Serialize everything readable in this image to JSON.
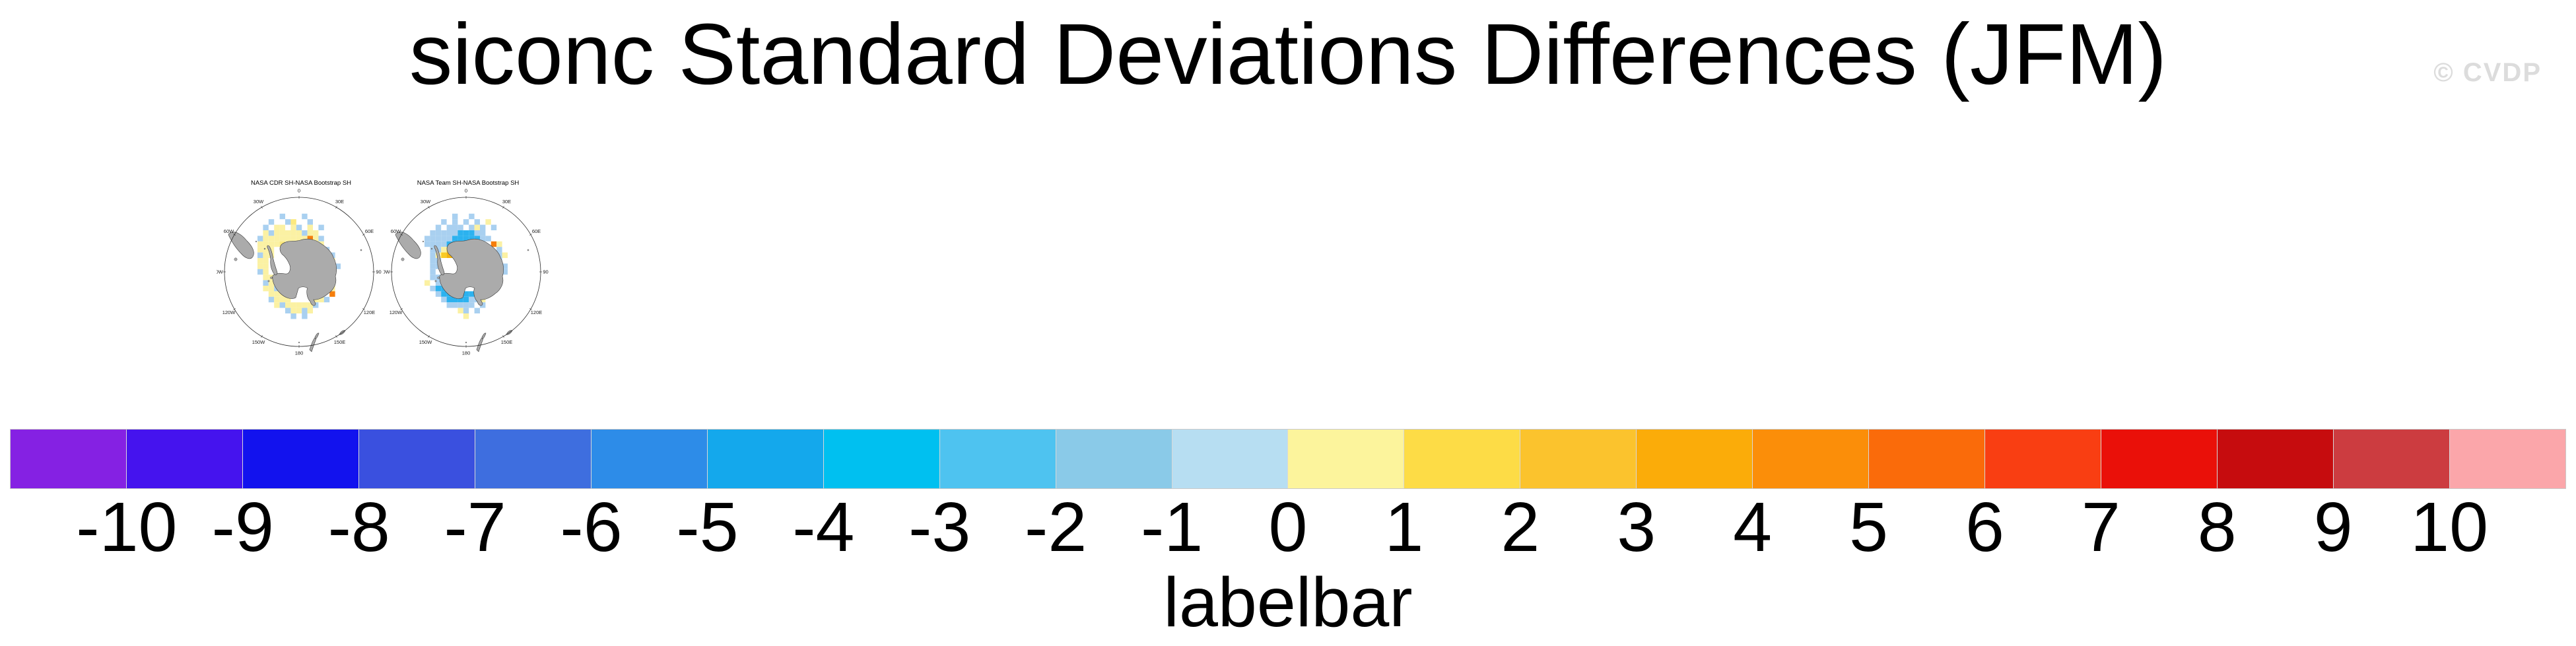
{
  "header": {
    "title": "siconc Standard Deviations Differences (JFM)",
    "watermark": "© CVDP",
    "watermark_color": "#DCDCDC"
  },
  "chart_data": {
    "type": "heatmap",
    "description": "Two south polar stereographic map panels of sea-ice concentration standard deviation differences, plus a shared discrete colorbar (labelbar).",
    "meridian_labels": [
      [
        "0",
        0
      ],
      [
        "30E",
        30
      ],
      [
        "60E",
        60
      ],
      [
        "90E",
        90
      ],
      [
        "120E",
        120
      ],
      [
        "150E",
        150
      ],
      [
        "180",
        180
      ],
      [
        "150W",
        210
      ],
      [
        "120W",
        240
      ],
      [
        "90W",
        270
      ],
      [
        "60W",
        300
      ],
      [
        "30W",
        330
      ]
    ],
    "land_color": "#ABABAB",
    "cell_palette": {
      "y": "#FBF1A3",
      "Y": "#FCE97E",
      "b": "#A9D0F0",
      "B": "#2CB2EF",
      "g": "#F9CB25",
      "G": "#F3B30F",
      "o": "#F57E0C"
    },
    "cell_value_legend": {
      "y": "0 to 1",
      "Y": "1 to 2",
      "b": "-1 to 0",
      "B": "-4 to -2",
      "g": "2 to 3",
      "G": "3 to 4",
      "o": "4 to 6"
    },
    "panels": [
      {
        "title": "NASA CDR SH-NASA Bootstrap SH",
        "cells": [
          [
            -3,
            -10,
            "b"
          ],
          [
            1,
            -10,
            "b"
          ],
          [
            -5,
            -9,
            "b"
          ],
          [
            -2,
            -9,
            "b"
          ],
          [
            -1,
            -9,
            "Y"
          ],
          [
            2,
            -9,
            "b"
          ],
          [
            -6,
            -8,
            "b"
          ],
          [
            -4,
            -8,
            "y"
          ],
          [
            -3,
            -8,
            "y"
          ],
          [
            -1,
            -8,
            "y"
          ],
          [
            0,
            -8,
            "b"
          ],
          [
            2,
            -8,
            "y"
          ],
          [
            4,
            -8,
            "b"
          ],
          [
            -6,
            -7,
            "y"
          ],
          [
            -5,
            -7,
            "b"
          ],
          [
            -4,
            -7,
            "y"
          ],
          [
            -3,
            -7,
            "y"
          ],
          [
            -2,
            -7,
            "y"
          ],
          [
            -1,
            -7,
            "y"
          ],
          [
            0,
            -7,
            "y"
          ],
          [
            1,
            -7,
            "b"
          ],
          [
            2,
            -7,
            "y"
          ],
          [
            3,
            -7,
            "y"
          ],
          [
            -7,
            -6,
            "b"
          ],
          [
            -6,
            -6,
            "y"
          ],
          [
            -5,
            -6,
            "y"
          ],
          [
            -4,
            -6,
            "y"
          ],
          [
            -3,
            -6,
            "y"
          ],
          [
            -2,
            -6,
            "y"
          ],
          [
            -1,
            -6,
            "y"
          ],
          [
            0,
            -6,
            "y"
          ],
          [
            1,
            -6,
            "y"
          ],
          [
            2,
            -6,
            "o"
          ],
          [
            3,
            -6,
            "y"
          ],
          [
            4,
            -6,
            "b"
          ],
          [
            -7,
            -5,
            "y"
          ],
          [
            -6,
            -5,
            "y"
          ],
          [
            -5,
            -5,
            "y"
          ],
          [
            -4,
            -5,
            "y"
          ],
          [
            -3,
            -5,
            "Y"
          ],
          [
            3,
            -5,
            "y"
          ],
          [
            4,
            -5,
            "y"
          ],
          [
            -7,
            -4,
            "y"
          ],
          [
            -6,
            -4,
            "y"
          ],
          [
            -5,
            -4,
            "y"
          ],
          [
            5,
            -4,
            "b"
          ],
          [
            -7,
            -3,
            "b"
          ],
          [
            -6,
            -3,
            "y"
          ],
          [
            -5,
            -3,
            "y"
          ],
          [
            5,
            -3,
            "b"
          ],
          [
            6,
            -3,
            "b"
          ],
          [
            -7,
            -2,
            "y"
          ],
          [
            -6,
            -2,
            "y"
          ],
          [
            6,
            -2,
            "y"
          ],
          [
            -7,
            -1,
            "y"
          ],
          [
            -6,
            -1,
            "y"
          ],
          [
            6,
            -1,
            "y"
          ],
          [
            7,
            -1,
            "b"
          ],
          [
            -7,
            0,
            "b"
          ],
          [
            -6,
            0,
            "y"
          ],
          [
            6,
            0,
            "y"
          ],
          [
            -6,
            1,
            "y"
          ],
          [
            -5,
            1,
            "y"
          ],
          [
            5,
            1,
            "y"
          ],
          [
            6,
            1,
            "b"
          ],
          [
            -6,
            2,
            "b"
          ],
          [
            -5,
            2,
            "y"
          ],
          [
            -4,
            2,
            "y"
          ],
          [
            5,
            2,
            "y"
          ],
          [
            6,
            2,
            "y"
          ],
          [
            -6,
            3,
            "y"
          ],
          [
            -5,
            3,
            "y"
          ],
          [
            -4,
            3,
            "b"
          ],
          [
            4,
            3,
            "y"
          ],
          [
            5,
            3,
            "y"
          ],
          [
            6,
            3,
            "y"
          ],
          [
            -5,
            4,
            "y"
          ],
          [
            -4,
            4,
            "y"
          ],
          [
            -3,
            4,
            "y"
          ],
          [
            -2,
            4,
            "b"
          ],
          [
            4,
            4,
            "y"
          ],
          [
            6,
            4,
            "o"
          ],
          [
            -5,
            5,
            "b"
          ],
          [
            -4,
            5,
            "y"
          ],
          [
            -3,
            5,
            "y"
          ],
          [
            -2,
            5,
            "y"
          ],
          [
            3,
            5,
            "y"
          ],
          [
            4,
            5,
            "y"
          ],
          [
            5,
            5,
            "b"
          ],
          [
            -4,
            6,
            "y"
          ],
          [
            -3,
            6,
            "b"
          ],
          [
            -2,
            6,
            "y"
          ],
          [
            -1,
            6,
            "y"
          ],
          [
            0,
            6,
            "y"
          ],
          [
            1,
            6,
            "y"
          ],
          [
            2,
            6,
            "y"
          ],
          [
            3,
            6,
            "b"
          ],
          [
            -2,
            7,
            "b"
          ],
          [
            -1,
            7,
            "y"
          ],
          [
            0,
            7,
            "y"
          ],
          [
            1,
            7,
            "b"
          ],
          [
            2,
            7,
            "y"
          ],
          [
            -1,
            8,
            "b"
          ],
          [
            1,
            8,
            "b"
          ]
        ]
      },
      {
        "title": "NASA Team SH-NASA Bootstrap SH",
        "cells": [
          [
            -2,
            -10,
            "b"
          ],
          [
            1,
            -10,
            "b"
          ],
          [
            -4,
            -9,
            "b"
          ],
          [
            -2,
            -9,
            "b"
          ],
          [
            0,
            -9,
            "b"
          ],
          [
            2,
            -9,
            "b"
          ],
          [
            4,
            -9,
            "y"
          ],
          [
            -5,
            -8,
            "b"
          ],
          [
            -3,
            -8,
            "b"
          ],
          [
            -2,
            -8,
            "b"
          ],
          [
            -1,
            -8,
            "b"
          ],
          [
            1,
            -8,
            "b"
          ],
          [
            2,
            -8,
            "y"
          ],
          [
            3,
            -8,
            "b"
          ],
          [
            5,
            -8,
            "b"
          ],
          [
            -6,
            -7,
            "b"
          ],
          [
            -5,
            -7,
            "b"
          ],
          [
            -4,
            -7,
            "b"
          ],
          [
            -3,
            -7,
            "b"
          ],
          [
            -2,
            -7,
            "b"
          ],
          [
            -1,
            -7,
            "B"
          ],
          [
            0,
            -7,
            "B"
          ],
          [
            1,
            -7,
            "B"
          ],
          [
            2,
            -7,
            "b"
          ],
          [
            3,
            -7,
            "b"
          ],
          [
            -7,
            -6,
            "b"
          ],
          [
            -6,
            -6,
            "b"
          ],
          [
            -5,
            -6,
            "b"
          ],
          [
            -4,
            -6,
            "b"
          ],
          [
            -3,
            -6,
            "b"
          ],
          [
            -2,
            -6,
            "B"
          ],
          [
            -1,
            -6,
            "B"
          ],
          [
            0,
            -6,
            "B"
          ],
          [
            1,
            -6,
            "B"
          ],
          [
            2,
            -6,
            "B"
          ],
          [
            3,
            -6,
            "b"
          ],
          [
            4,
            -6,
            "b"
          ],
          [
            -7,
            -5,
            "b"
          ],
          [
            -6,
            -5,
            "b"
          ],
          [
            -5,
            -5,
            "b"
          ],
          [
            -4,
            -5,
            "b"
          ],
          [
            -3,
            -5,
            "B"
          ],
          [
            -2,
            -5,
            "B"
          ],
          [
            -1,
            -5,
            "B"
          ],
          [
            0,
            -5,
            "B"
          ],
          [
            1,
            -5,
            "b"
          ],
          [
            5,
            -5,
            "o"
          ],
          [
            6,
            -5,
            "y"
          ],
          [
            -6,
            -4,
            "b"
          ],
          [
            -5,
            -4,
            "b"
          ],
          [
            -4,
            -4,
            "y"
          ],
          [
            -3,
            -4,
            "g"
          ],
          [
            -2,
            -4,
            "g"
          ],
          [
            -1,
            -4,
            "y"
          ],
          [
            6,
            -4,
            "b"
          ],
          [
            -6,
            -3,
            "b"
          ],
          [
            -5,
            -3,
            "y"
          ],
          [
            -4,
            -3,
            "g"
          ],
          [
            -3,
            -3,
            "G"
          ],
          [
            -2,
            -3,
            "G"
          ],
          [
            -1,
            -3,
            "g"
          ],
          [
            6,
            -3,
            "b"
          ],
          [
            7,
            -3,
            "y"
          ],
          [
            -6,
            -2,
            "b"
          ],
          [
            -5,
            -2,
            "b"
          ],
          [
            6,
            -2,
            "b"
          ],
          [
            -6,
            -1,
            "b"
          ],
          [
            -5,
            -1,
            "b"
          ],
          [
            6,
            -1,
            "y"
          ],
          [
            7,
            -1,
            "b"
          ],
          [
            -6,
            0,
            "b"
          ],
          [
            6,
            0,
            "b"
          ],
          [
            7,
            0,
            "b"
          ],
          [
            -6,
            1,
            "b"
          ],
          [
            -5,
            1,
            "b"
          ],
          [
            5,
            1,
            "b"
          ],
          [
            6,
            1,
            "y"
          ],
          [
            -7,
            2,
            "y"
          ],
          [
            -5,
            2,
            "b"
          ],
          [
            -4,
            2,
            "b"
          ],
          [
            5,
            2,
            "b"
          ],
          [
            6,
            2,
            "b"
          ],
          [
            -6,
            3,
            "b"
          ],
          [
            -5,
            3,
            "B"
          ],
          [
            -4,
            3,
            "B"
          ],
          [
            -3,
            3,
            "B"
          ],
          [
            -2,
            3,
            "B"
          ],
          [
            -1,
            3,
            "b"
          ],
          [
            4,
            3,
            "b"
          ],
          [
            5,
            3,
            "y"
          ],
          [
            -5,
            4,
            "b"
          ],
          [
            -4,
            4,
            "B"
          ],
          [
            -3,
            4,
            "B"
          ],
          [
            -2,
            4,
            "B"
          ],
          [
            -1,
            4,
            "B"
          ],
          [
            0,
            4,
            "B"
          ],
          [
            1,
            4,
            "B"
          ],
          [
            2,
            4,
            "b"
          ],
          [
            4,
            4,
            "b"
          ],
          [
            -4,
            5,
            "b"
          ],
          [
            -3,
            5,
            "B"
          ],
          [
            -2,
            5,
            "B"
          ],
          [
            -1,
            5,
            "B"
          ],
          [
            0,
            5,
            "B"
          ],
          [
            1,
            5,
            "b"
          ],
          [
            2,
            5,
            "b"
          ],
          [
            3,
            5,
            "y"
          ],
          [
            -3,
            6,
            "b"
          ],
          [
            -2,
            6,
            "b"
          ],
          [
            -1,
            6,
            "b"
          ],
          [
            0,
            6,
            "b"
          ],
          [
            1,
            6,
            "b"
          ],
          [
            3,
            6,
            "b"
          ],
          [
            -1,
            7,
            "y"
          ],
          [
            0,
            7,
            "b"
          ],
          [
            2,
            7,
            "b"
          ],
          [
            0,
            8,
            "y"
          ]
        ]
      }
    ],
    "colorbar": {
      "label": "labelbar",
      "tick_labels": [
        "-10",
        "-9",
        "-8",
        "-7",
        "-6",
        "-5",
        "-4",
        "-3",
        "-2",
        "-1",
        "0",
        "1",
        "2",
        "3",
        "4",
        "5",
        "6",
        "7",
        "8",
        "9",
        "10"
      ],
      "colors": [
        "#8521E3",
        "#4513EE",
        "#1212EE",
        "#3A50DF",
        "#3E6EDF",
        "#2D8CE8",
        "#14A8EC",
        "#00C0F0",
        "#4EC3F0",
        "#8ACAE8",
        "#B7DEF2",
        "#FCF49C",
        "#FDDC46",
        "#FBC32D",
        "#FBAC09",
        "#FB8E09",
        "#FA6B0A",
        "#F93E12",
        "#EA1009",
        "#C60C0E",
        "#CC3C40",
        "#FBA6AA"
      ]
    }
  }
}
